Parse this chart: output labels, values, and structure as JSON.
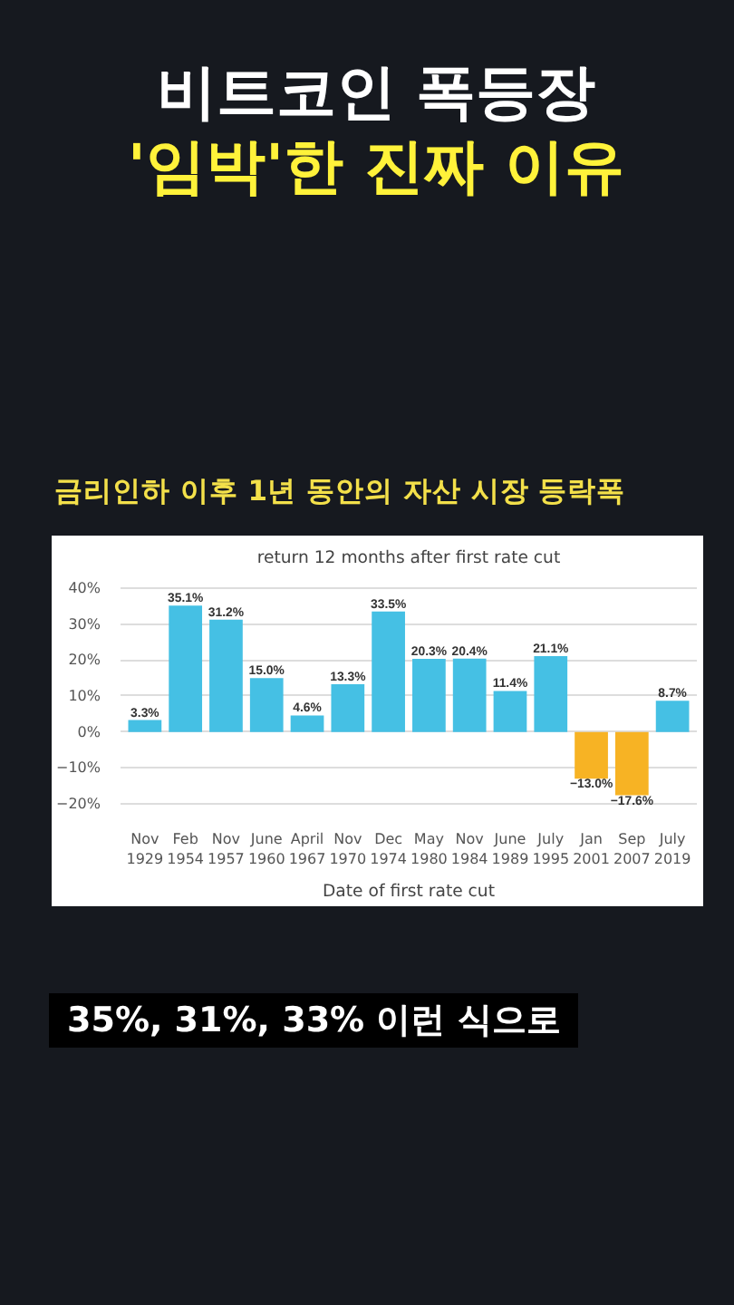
{
  "chart_data": {
    "type": "bar",
    "title": "비트코인 폭등장\n'임박'한 진짜 이유",
    "subtitle": "금리인하 이후 1년 동안의 자산 시장 등락폭",
    "xlabel": "Date of first rate cut",
    "annotations": [
      "return 12 months after first rate cut",
      "35%, 31%, 33% 이런 식으로"
    ],
    "categories": [
      "Nov\n1929",
      "Feb\n1954",
      "Nov\n1957",
      "June\n1960",
      "April\n1967",
      "Nov\n1970",
      "Dec\n1974",
      "May\n1980",
      "Nov\n1984",
      "June\n1989",
      "July\n1995",
      "Jan\n2001",
      "Sep\n2007",
      "July\n2019"
    ],
    "values": [
      3.3,
      35.1,
      31.2,
      15.0,
      4.6,
      13.3,
      33.5,
      20.3,
      20.4,
      11.4,
      21.1,
      -13.0,
      -17.6,
      8.7
    ],
    "value_labels": [
      "3.3%",
      "35.1%",
      "31.2%",
      "15.0%",
      "4.6%",
      "13.3%",
      "33.5%",
      "20.3%",
      "20.4%",
      "11.4%",
      "21.1%",
      "−13.0%",
      "−17.6%",
      "8.7%"
    ],
    "colors": [
      "#45c0e4",
      "#45c0e4",
      "#45c0e4",
      "#45c0e4",
      "#45c0e4",
      "#45c0e4",
      "#45c0e4",
      "#45c0e4",
      "#45c0e4",
      "#45c0e4",
      "#45c0e4",
      "#f7b324",
      "#f7b324",
      "#45c0e4"
    ],
    "ylim": [
      -22,
      43
    ],
    "yticks": [
      {
        "value": -20,
        "label": "−20%"
      },
      {
        "value": -10,
        "label": "−10%"
      },
      {
        "value": 0,
        "label": "0%"
      },
      {
        "value": 10,
        "label": "10%"
      },
      {
        "value": 20,
        "label": "20%"
      },
      {
        "value": 30,
        "label": "30%"
      },
      {
        "value": 40,
        "label": "40%"
      }
    ],
    "grid": "y"
  }
}
